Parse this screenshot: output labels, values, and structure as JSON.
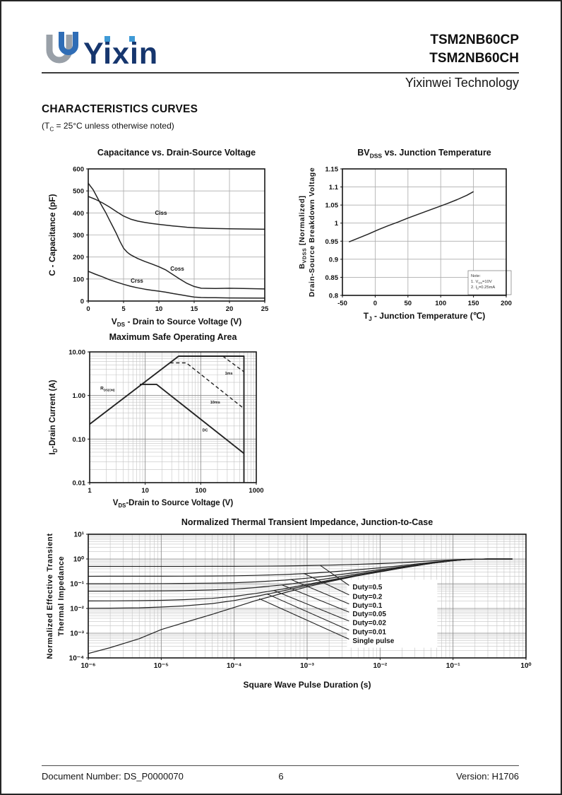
{
  "colors": {
    "logo_navy": "#16366e",
    "logo_light_blue": "#3f9ad6",
    "logo_gray": "#99a0a8",
    "logo_blue": "#2f6db6",
    "line_black": "#1a1a1a"
  },
  "page": {
    "header": {
      "brand": "Yixin",
      "part1": "TSM2NB60CP",
      "part2": "TSM2NB60CH",
      "company": "Yixinwei Technology",
      "section_title": "CHARACTERISTICS CURVES",
      "condition_parts": [
        {
          "t": "(T"
        },
        {
          "t": "C",
          "sub": true
        },
        {
          "t": " = 25°C unless otherwise noted)"
        }
      ]
    },
    "footer": {
      "doc_number": "Document Number: DS_P0000070",
      "page_number": "6",
      "version": "Version: H1706"
    }
  },
  "chart_data": [
    {
      "id": "cap",
      "type": "line",
      "title": "Capacitance vs. Drain-Source Voltage",
      "x_axis": {
        "type": "linear",
        "min": 0,
        "max": 25,
        "label_parts": [
          {
            "t": "V"
          },
          {
            "t": "DS",
            "sub": true
          },
          {
            "t": " - Drain to Source Voltage (V)"
          }
        ],
        "ticks": [
          {
            "v": 0,
            "label": "0"
          },
          {
            "v": 5,
            "label": "5"
          },
          {
            "v": 10,
            "label": "10"
          },
          {
            "v": 15,
            "label": "15"
          },
          {
            "v": 20,
            "label": "20"
          },
          {
            "v": 25,
            "label": "25"
          }
        ]
      },
      "y_axis": {
        "type": "linear",
        "min": 0,
        "max": 600,
        "label": "C - Capacitance (pF)",
        "ticks": [
          {
            "v": 0,
            "label": "0"
          },
          {
            "v": 100,
            "label": "100"
          },
          {
            "v": 200,
            "label": "200"
          },
          {
            "v": 300,
            "label": "300"
          },
          {
            "v": 400,
            "label": "400"
          },
          {
            "v": 500,
            "label": "500"
          },
          {
            "v": 600,
            "label": "600"
          }
        ]
      },
      "series": [
        {
          "name": "Ciss",
          "width": 1.5,
          "points": [
            [
              0,
              475
            ],
            [
              1,
              462
            ],
            [
              2,
              446
            ],
            [
              3,
              427
            ],
            [
              4,
              406
            ],
            [
              5,
              386
            ],
            [
              6,
              372
            ],
            [
              7,
              363
            ],
            [
              8,
              357
            ],
            [
              9,
              352
            ],
            [
              10,
              348
            ],
            [
              12,
              341
            ],
            [
              14,
              335
            ],
            [
              15,
              333
            ],
            [
              17,
              330
            ],
            [
              20,
              328
            ],
            [
              25,
              326
            ]
          ]
        },
        {
          "name": "Coss",
          "width": 1.5,
          "points": [
            [
              0,
              535
            ],
            [
              0.7,
              505
            ],
            [
              1.5,
              457
            ],
            [
              2,
              428
            ],
            [
              2.5,
              400
            ],
            [
              3,
              368
            ],
            [
              3.5,
              337
            ],
            [
              4,
              305
            ],
            [
              4.5,
              270
            ],
            [
              5,
              240
            ],
            [
              5.5,
              222
            ],
            [
              6,
              210
            ],
            [
              7,
              193
            ],
            [
              8,
              180
            ],
            [
              9,
              168
            ],
            [
              10,
              156
            ],
            [
              11,
              141
            ],
            [
              12,
              120
            ],
            [
              13,
              99
            ],
            [
              14,
              80
            ],
            [
              15,
              66
            ],
            [
              16,
              58
            ],
            [
              18,
              57
            ],
            [
              20,
              58
            ],
            [
              22,
              57
            ],
            [
              25,
              55
            ]
          ]
        },
        {
          "name": "Crss",
          "width": 1.5,
          "points": [
            [
              0,
              135
            ],
            [
              1,
              122
            ],
            [
              2,
              110
            ],
            [
              3,
              97
            ],
            [
              4,
              86
            ],
            [
              5,
              76
            ],
            [
              6,
              67
            ],
            [
              7,
              60
            ],
            [
              8,
              54
            ],
            [
              9,
              49
            ],
            [
              10,
              45
            ],
            [
              11,
              40
            ],
            [
              12,
              34
            ],
            [
              13,
              29
            ],
            [
              14,
              23
            ],
            [
              15,
              18
            ],
            [
              16,
              16
            ],
            [
              17,
              15
            ],
            [
              18,
              15
            ],
            [
              20,
              14
            ],
            [
              25,
              13
            ]
          ]
        }
      ],
      "annotations": [
        {
          "text": "Ciss",
          "x": 10.3,
          "y": 392,
          "size": 8
        },
        {
          "text": "Coss",
          "x": 12.6,
          "y": 138,
          "size": 8
        },
        {
          "text": "Crss",
          "x": 6.9,
          "y": 84,
          "size": 8
        }
      ]
    },
    {
      "id": "bv",
      "type": "line",
      "title_parts": [
        {
          "t": "BV"
        },
        {
          "t": "DSS",
          "sub": true
        },
        {
          "t": " vs. Junction Temperature"
        }
      ],
      "x_axis": {
        "type": "linear",
        "min": -50,
        "max": 200,
        "label_parts": [
          {
            "t": "T"
          },
          {
            "t": "J",
            "sub": true
          },
          {
            "t": " - Junction Temperature (℃)"
          }
        ],
        "ticks": [
          {
            "v": -50,
            "label": "-50"
          },
          {
            "v": 0,
            "label": "0"
          },
          {
            "v": 50,
            "label": "50"
          },
          {
            "v": 100,
            "label": "100"
          },
          {
            "v": 150,
            "label": "150"
          },
          {
            "v": 200,
            "label": "200"
          }
        ]
      },
      "y_axis": {
        "type": "linear",
        "min": 0.8,
        "max": 1.15,
        "label_outer_parts": [
          {
            "t": "B"
          },
          {
            "t": "VDSS",
            "sub": true
          },
          {
            "t": " [Normalized]"
          }
        ],
        "label_inner": "Drain-Source Breakdown Voltage",
        "ticks": [
          {
            "v": 1.15,
            "label": "1.15"
          },
          {
            "v": 1.1,
            "label": "1.1"
          },
          {
            "v": 1.05,
            "label": "1.05"
          },
          {
            "v": 1,
            "label": "1"
          },
          {
            "v": 0.95,
            "label": "0.95"
          },
          {
            "v": 0.9,
            "label": "0.9"
          },
          {
            "v": 0.85,
            "label": "0.85"
          },
          {
            "v": 0.8,
            "label": "0.8"
          }
        ]
      },
      "series": [
        {
          "name": "BVDSS normalized",
          "width": 1.5,
          "points": [
            [
              -40,
              0.948
            ],
            [
              -25,
              0.959
            ],
            [
              -10,
              0.97
            ],
            [
              5,
              0.982
            ],
            [
              20,
              0.993
            ],
            [
              35,
              1.003
            ],
            [
              50,
              1.014
            ],
            [
              65,
              1.024
            ],
            [
              80,
              1.034
            ],
            [
              95,
              1.044
            ],
            [
              110,
              1.054
            ],
            [
              125,
              1.065
            ],
            [
              140,
              1.077
            ],
            [
              150,
              1.087
            ]
          ]
        }
      ],
      "note": {
        "lines": [
          [
            {
              "t": "Note:"
            }
          ],
          [
            {
              "t": "1. V"
            },
            {
              "t": "GS",
              "sub": true
            },
            {
              "t": "=10V"
            }
          ],
          [
            {
              "t": "2. I"
            },
            {
              "t": "D",
              "sub": true
            },
            {
              "t": "=0.25mA"
            }
          ]
        ]
      }
    },
    {
      "id": "soa",
      "type": "line",
      "title": "Maximum Safe Operating Area",
      "x_axis": {
        "type": "log",
        "min": 1,
        "max": 1000,
        "label_parts": [
          {
            "t": "V"
          },
          {
            "t": "DS",
            "sub": true
          },
          {
            "t": "-Drain to Source Voltage (V)"
          }
        ],
        "ticks": [
          {
            "v": 1,
            "label": "1"
          },
          {
            "v": 10,
            "label": "10"
          },
          {
            "v": 100,
            "label": "100"
          },
          {
            "v": 1000,
            "label": "1000"
          }
        ]
      },
      "y_axis": {
        "type": "log",
        "min": 0.01,
        "max": 10,
        "label_parts": [
          {
            "t": "I"
          },
          {
            "t": "D",
            "sub": true
          },
          {
            "t": "-Drain Current (A)"
          }
        ],
        "ticks": [
          {
            "v": 10,
            "label": "10.00"
          },
          {
            "v": 1,
            "label": "1.00"
          },
          {
            "v": 0.1,
            "label": "0.10"
          },
          {
            "v": 0.01,
            "label": "0.01"
          }
        ]
      },
      "series": [
        {
          "name": "Pulse limit boundary",
          "width": 1.9,
          "points": [
            [
              1,
              0.22
            ],
            [
              40,
              8
            ],
            [
              600,
              8
            ],
            [
              600,
              0.01
            ]
          ]
        },
        {
          "name": "DC",
          "width": 1.9,
          "points": [
            [
              8,
              1.8
            ],
            [
              16,
              1.8
            ],
            [
              600,
              0.047
            ]
          ]
        },
        {
          "name": "1ms",
          "width": 1.4,
          "dash": "5,3.5",
          "points": [
            [
              250,
              8
            ],
            [
              600,
              3.5
            ]
          ]
        },
        {
          "name": "10ms",
          "width": 1.4,
          "dash": "5,3.5",
          "points": [
            [
              28,
              5.6
            ],
            [
              55,
              5.6
            ],
            [
              600,
              0.5
            ]
          ]
        }
      ],
      "annotations": [
        {
          "parts": [
            {
              "t": "R"
            },
            {
              "t": "DS(ON)",
              "sub": true
            }
          ],
          "x": 2.1,
          "y": 1.35,
          "size": 6.5
        },
        {
          "text": "1ms",
          "x": 320,
          "y": 3.0,
          "size": 5.5
        },
        {
          "text": "10ms",
          "x": 182,
          "y": 0.66,
          "size": 5.5
        },
        {
          "text": "DC",
          "x": 120,
          "y": 0.15,
          "size": 5.5
        }
      ]
    },
    {
      "id": "zth",
      "type": "line",
      "title": "Normalized Thermal Transient Impedance, Junction-to-Case",
      "x_axis": {
        "type": "log",
        "min": 1e-06,
        "max": 1,
        "label": "Square Wave Pulse Duration (s)",
        "ticks": [
          {
            "v": 1e-06,
            "label": "10⁻⁶"
          },
          {
            "v": 1e-05,
            "label": "10⁻⁵"
          },
          {
            "v": 0.0001,
            "label": "10⁻⁴"
          },
          {
            "v": 0.001,
            "label": "10⁻³"
          },
          {
            "v": 0.01,
            "label": "10⁻²"
          },
          {
            "v": 0.1,
            "label": "10⁻¹"
          },
          {
            "v": 1,
            "label": "10⁰"
          }
        ]
      },
      "y_axis": {
        "type": "log",
        "min": 0.0001,
        "max": 10,
        "label_lines": [
          "Normalized Effective Transient",
          "Thermal Impedance"
        ],
        "ticks": [
          {
            "v": 10,
            "label": "10¹"
          },
          {
            "v": 1,
            "label": "10⁰"
          },
          {
            "v": 0.1,
            "label": "10⁻¹"
          },
          {
            "v": 0.01,
            "label": "10⁻²"
          },
          {
            "v": 0.001,
            "label": "10⁻³"
          },
          {
            "v": 0.0001,
            "label": "10⁻⁴"
          }
        ]
      },
      "single_pulse": {
        "name": "Single pulse",
        "width": 1.2,
        "points": [
          [
            1e-06,
            0.00015
          ],
          [
            2e-06,
            0.00026
          ],
          [
            5e-06,
            0.0006
          ],
          [
            1e-05,
            0.0014
          ],
          [
            2e-05,
            0.0026
          ],
          [
            5e-05,
            0.0058
          ],
          [
            0.0001,
            0.011
          ],
          [
            0.0002,
            0.021
          ],
          [
            0.0005,
            0.044
          ],
          [
            0.001,
            0.075
          ],
          [
            0.002,
            0.12
          ],
          [
            0.005,
            0.21
          ],
          [
            0.01,
            0.3
          ],
          [
            0.02,
            0.43
          ],
          [
            0.05,
            0.66
          ],
          [
            0.1,
            0.85
          ],
          [
            0.15,
            0.94
          ],
          [
            0.2,
            0.98
          ],
          [
            0.3,
            1.0
          ],
          [
            0.65,
            1.0
          ]
        ]
      },
      "duties": [
        0.5,
        0.2,
        0.1,
        0.05,
        0.02,
        0.01
      ],
      "callouts": [
        {
          "label": "Duty=0.5",
          "lx": 0.0042,
          "ly": 0.075,
          "tx": 0.0015,
          "ty": 0.56
        },
        {
          "label": "Duty=0.2",
          "lx": 0.0042,
          "ly": 0.031,
          "tx": 0.0009,
          "ty": 0.26
        },
        {
          "label": "Duty=0.1",
          "lx": 0.0042,
          "ly": 0.0133,
          "tx": 0.0006,
          "ty": 0.148
        },
        {
          "label": "Duty=0.05",
          "lx": 0.0042,
          "ly": 0.0062,
          "tx": 0.00045,
          "ty": 0.09
        },
        {
          "label": "Duty=0.02",
          "lx": 0.0042,
          "ly": 0.0027,
          "tx": 0.00035,
          "ty": 0.053
        },
        {
          "label": "Duty=0.01",
          "lx": 0.0042,
          "ly": 0.00115,
          "tx": 0.00028,
          "ty": 0.039
        },
        {
          "label": "Single pulse",
          "lx": 0.0042,
          "ly": 0.0005,
          "tx": 0.00022,
          "ty": 0.025
        }
      ]
    }
  ]
}
